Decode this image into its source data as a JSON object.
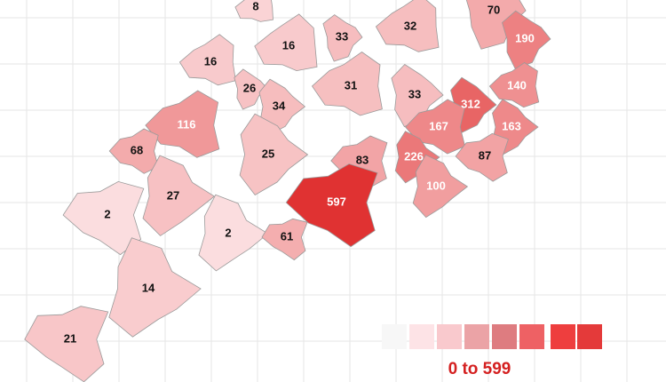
{
  "chart_data": {
    "type": "map",
    "values": [
      8,
      70,
      16,
      33,
      32,
      190,
      16,
      26,
      31,
      33,
      140,
      312,
      116,
      34,
      167,
      163,
      68,
      25,
      83,
      226,
      87,
      100,
      597,
      27,
      2,
      2,
      61,
      14,
      21
    ],
    "legend": {
      "label": "0 to 599",
      "range": [
        0,
        599
      ]
    }
  }
}
